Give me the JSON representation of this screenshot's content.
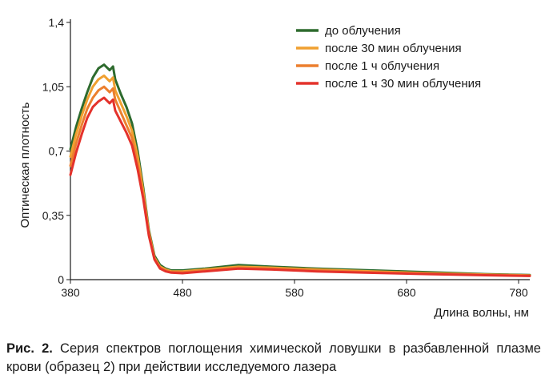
{
  "chart_data": {
    "type": "line",
    "title": "",
    "xlabel": "Длина волны, нм",
    "ylabel": "Оптическая плотность",
    "xlim": [
      380,
      790
    ],
    "ylim": [
      0,
      1.4
    ],
    "xticks": [
      380,
      480,
      580,
      680,
      780
    ],
    "xtick_labels": [
      "380",
      "480",
      "580",
      "680",
      "780"
    ],
    "yticks": [
      0,
      0.35,
      0.7,
      1.05,
      1.4
    ],
    "ytick_labels": [
      "0",
      "0,35",
      "0,7",
      "1,05",
      "1,4"
    ],
    "grid": false,
    "legend_position": "top-right",
    "x": [
      380,
      385,
      390,
      395,
      400,
      405,
      410,
      415,
      418,
      420,
      425,
      430,
      435,
      440,
      445,
      450,
      455,
      460,
      465,
      470,
      480,
      500,
      530,
      560,
      600,
      650,
      700,
      750,
      790
    ],
    "series": [
      {
        "name": "до облучения",
        "color": "#2e6b2e",
        "values": [
          0.71,
          0.83,
          0.93,
          1.02,
          1.1,
          1.15,
          1.17,
          1.14,
          1.16,
          1.09,
          1.01,
          0.94,
          0.85,
          0.7,
          0.5,
          0.27,
          0.13,
          0.08,
          0.06,
          0.05,
          0.05,
          0.06,
          0.08,
          0.07,
          0.06,
          0.05,
          0.04,
          0.03,
          0.025
        ]
      },
      {
        "name": "после 30 мин облучения",
        "color": "#f0a030",
        "values": [
          0.67,
          0.79,
          0.89,
          0.98,
          1.05,
          1.09,
          1.11,
          1.08,
          1.1,
          1.03,
          0.96,
          0.89,
          0.81,
          0.67,
          0.48,
          0.26,
          0.12,
          0.07,
          0.055,
          0.045,
          0.045,
          0.055,
          0.07,
          0.065,
          0.055,
          0.045,
          0.035,
          0.028,
          0.023
        ]
      },
      {
        "name": "после 1 ч облучения",
        "color": "#ec7f2e",
        "values": [
          0.62,
          0.74,
          0.84,
          0.93,
          0.99,
          1.03,
          1.05,
          1.02,
          1.04,
          0.98,
          0.91,
          0.84,
          0.77,
          0.63,
          0.46,
          0.25,
          0.115,
          0.065,
          0.05,
          0.042,
          0.04,
          0.05,
          0.065,
          0.06,
          0.05,
          0.04,
          0.032,
          0.026,
          0.021
        ]
      },
      {
        "name": "после 1 ч 30 мин облучения",
        "color": "#e4322b",
        "values": [
          0.57,
          0.69,
          0.79,
          0.88,
          0.94,
          0.97,
          0.99,
          0.96,
          0.98,
          0.92,
          0.86,
          0.8,
          0.73,
          0.6,
          0.44,
          0.24,
          0.11,
          0.06,
          0.045,
          0.038,
          0.035,
          0.045,
          0.06,
          0.055,
          0.045,
          0.037,
          0.03,
          0.024,
          0.02
        ]
      }
    ]
  },
  "caption": {
    "label": "Рис. 2.",
    "text": " Серия спектров поглощения химической ловушки в разбавленной плазме крови (образец 2) при действии исследуемого лазера"
  }
}
